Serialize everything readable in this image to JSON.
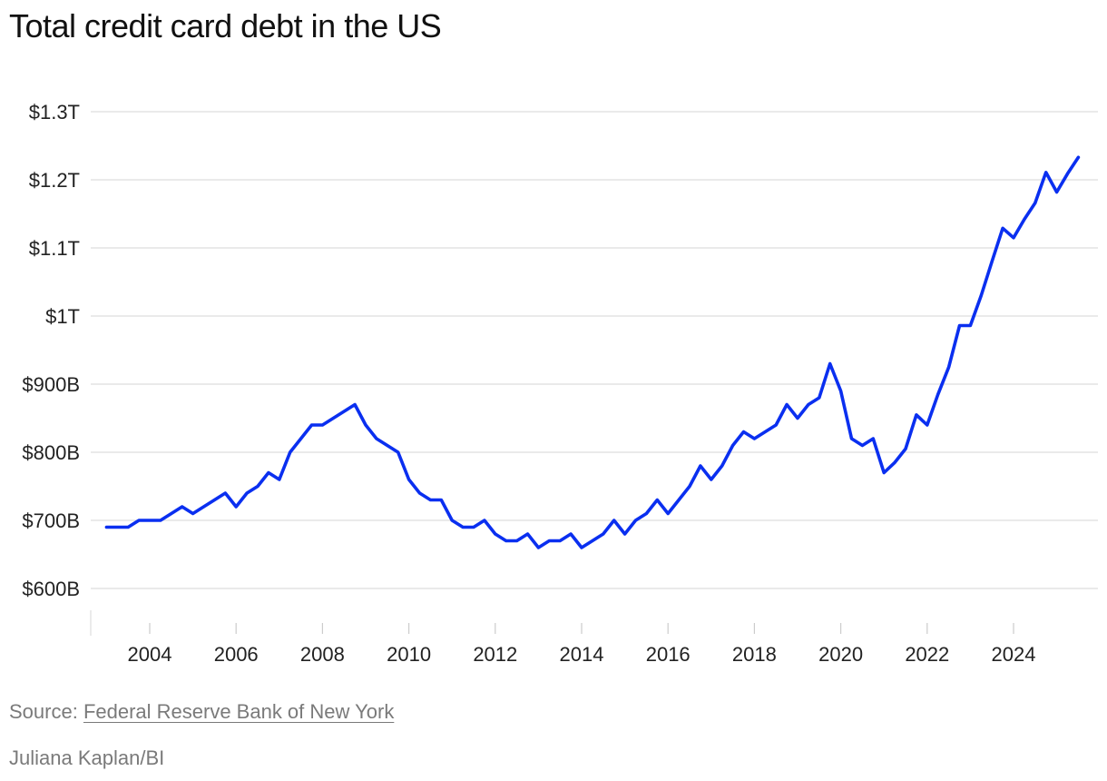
{
  "chart_data": {
    "type": "line",
    "title": "Total credit card debt in the US",
    "xlabel": "",
    "ylabel": "",
    "ylim": [
      550,
      1300
    ],
    "xlim": [
      2002.5,
      2026
    ],
    "grid": true,
    "y_ticks": [
      {
        "value": 600,
        "label": "$600B"
      },
      {
        "value": 700,
        "label": "$700B"
      },
      {
        "value": 800,
        "label": "$800B"
      },
      {
        "value": 900,
        "label": "$900B"
      },
      {
        "value": 1000,
        "label": "$1T"
      },
      {
        "value": 1100,
        "label": "$1.1T"
      },
      {
        "value": 1200,
        "label": "$1.2T"
      },
      {
        "value": 1300,
        "label": "$1.3T"
      }
    ],
    "x_ticks": [
      {
        "value": 2004,
        "label": "2004"
      },
      {
        "value": 2006,
        "label": "2006"
      },
      {
        "value": 2008,
        "label": "2008"
      },
      {
        "value": 2010,
        "label": "2010"
      },
      {
        "value": 2012,
        "label": "2012"
      },
      {
        "value": 2014,
        "label": "2014"
      },
      {
        "value": 2016,
        "label": "2016"
      },
      {
        "value": 2018,
        "label": "2018"
      },
      {
        "value": 2020,
        "label": "2020"
      },
      {
        "value": 2022,
        "label": "2022"
      },
      {
        "value": 2024,
        "label": "2024"
      }
    ],
    "series": [
      {
        "name": "Total credit card debt",
        "color": "#0a2ff0",
        "x": [
          2003.0,
          2003.25,
          2003.5,
          2003.75,
          2004.0,
          2004.25,
          2004.5,
          2004.75,
          2005.0,
          2005.25,
          2005.5,
          2005.75,
          2006.0,
          2006.25,
          2006.5,
          2006.75,
          2007.0,
          2007.25,
          2007.5,
          2007.75,
          2008.0,
          2008.25,
          2008.5,
          2008.75,
          2009.0,
          2009.25,
          2009.5,
          2009.75,
          2010.0,
          2010.25,
          2010.5,
          2010.75,
          2011.0,
          2011.25,
          2011.5,
          2011.75,
          2012.0,
          2012.25,
          2012.5,
          2012.75,
          2013.0,
          2013.25,
          2013.5,
          2013.75,
          2014.0,
          2014.25,
          2014.5,
          2014.75,
          2015.0,
          2015.25,
          2015.5,
          2015.75,
          2016.0,
          2016.25,
          2016.5,
          2016.75,
          2017.0,
          2017.25,
          2017.5,
          2017.75,
          2018.0,
          2018.25,
          2018.5,
          2018.75,
          2019.0,
          2019.25,
          2019.5,
          2019.75,
          2020.0,
          2020.25,
          2020.5,
          2020.75,
          2021.0,
          2021.25,
          2021.5,
          2021.75,
          2022.0,
          2022.25,
          2022.5,
          2022.75,
          2023.0,
          2023.25,
          2023.5,
          2023.75,
          2024.0,
          2024.25,
          2024.5,
          2024.75,
          2025.0,
          2025.25,
          2025.5
        ],
        "values": [
          690,
          690,
          690,
          700,
          700,
          700,
          710,
          720,
          710,
          720,
          730,
          740,
          720,
          740,
          750,
          770,
          760,
          800,
          820,
          840,
          840,
          850,
          860,
          870,
          840,
          820,
          810,
          800,
          760,
          740,
          730,
          730,
          700,
          690,
          690,
          700,
          680,
          670,
          670,
          680,
          660,
          670,
          670,
          680,
          660,
          670,
          680,
          700,
          680,
          700,
          710,
          730,
          710,
          730,
          750,
          780,
          760,
          780,
          810,
          830,
          820,
          830,
          840,
          870,
          850,
          870,
          880,
          930,
          890,
          820,
          810,
          820,
          770,
          785,
          805,
          855,
          840,
          885,
          925,
          986,
          986,
          1030,
          1080,
          1129,
          1115,
          1142,
          1166,
          1211,
          1182,
          1209,
          1233
        ]
      }
    ]
  },
  "footer": {
    "source_prefix": "Source: ",
    "source_link": "Federal Reserve Bank of New York",
    "credit": "Juliana Kaplan/BI"
  }
}
